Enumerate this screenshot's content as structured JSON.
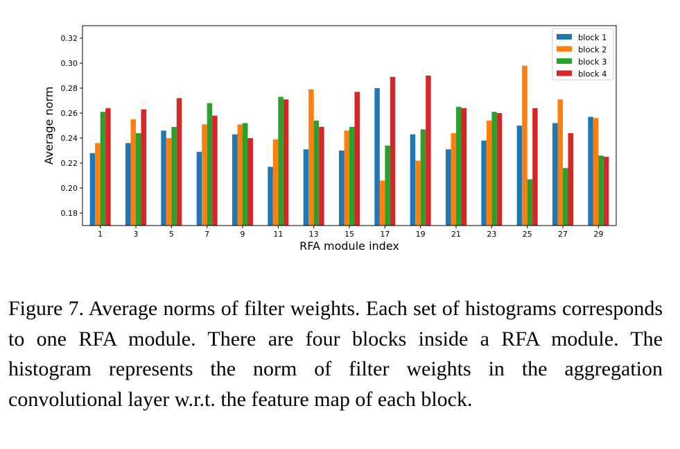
{
  "chart_data": {
    "type": "bar",
    "xlabel": "RFA module index",
    "ylabel": "Average norm",
    "ylim": [
      0.17,
      0.33
    ],
    "yticks": [
      "0.18",
      "0.20",
      "0.22",
      "0.24",
      "0.26",
      "0.28",
      "0.30",
      "0.32"
    ],
    "categories": [
      "1",
      "3",
      "5",
      "7",
      "9",
      "11",
      "13",
      "15",
      "17",
      "19",
      "21",
      "23",
      "25",
      "27",
      "29"
    ],
    "legend_position": "top-right",
    "series": [
      {
        "name": "block 1",
        "color": "#1f77b4",
        "values": [
          0.228,
          0.236,
          0.246,
          0.229,
          0.243,
          0.217,
          0.231,
          0.23,
          0.28,
          0.243,
          0.231,
          0.238,
          0.25,
          0.252,
          0.257
        ]
      },
      {
        "name": "block 2",
        "color": "#ff7f0e",
        "values": [
          0.236,
          0.255,
          0.24,
          0.251,
          0.251,
          0.239,
          0.279,
          0.246,
          0.206,
          0.222,
          0.244,
          0.254,
          0.298,
          0.271,
          0.256
        ]
      },
      {
        "name": "block 3",
        "color": "#2ca02c",
        "values": [
          0.261,
          0.244,
          0.249,
          0.268,
          0.252,
          0.273,
          0.254,
          0.249,
          0.234,
          0.247,
          0.265,
          0.261,
          0.207,
          0.216,
          0.226
        ]
      },
      {
        "name": "block 4",
        "color": "#d62728",
        "values": [
          0.264,
          0.263,
          0.272,
          0.258,
          0.24,
          0.271,
          0.249,
          0.277,
          0.289,
          0.29,
          0.264,
          0.26,
          0.264,
          0.244,
          0.225
        ]
      }
    ]
  },
  "caption": "Figure 7. Average norms of filter weights. Each set of histograms corresponds to one RFA module. There are four blocks inside a RFA module. The histogram represents the norm of filter weights in the aggregation convolutional layer w.r.t. the feature map of each block."
}
